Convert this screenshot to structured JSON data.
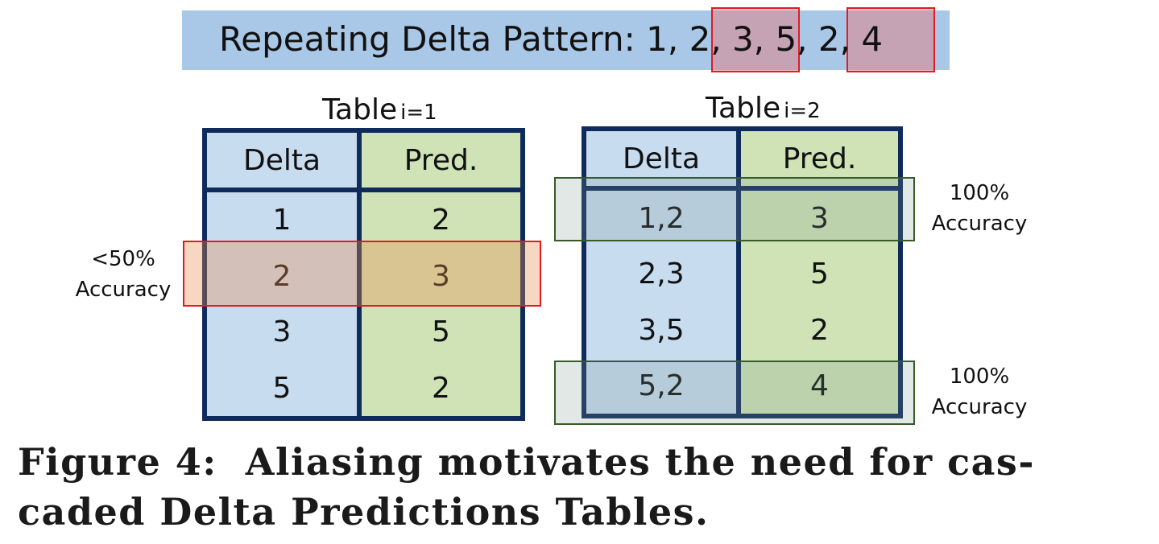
{
  "banner": {
    "prefix": "Repeating Delta Pattern: 1,",
    "hl1": "2, 3,",
    "middle": "5,",
    "hl2": "2, 4"
  },
  "table1": {
    "title": "Table",
    "subscript": "i=1",
    "headers": [
      "Delta",
      "Pred."
    ],
    "rows": [
      [
        "1",
        "2"
      ],
      [
        "2",
        "3"
      ],
      [
        "3",
        "5"
      ],
      [
        "5",
        "2"
      ]
    ],
    "note_line1": "<50%",
    "note_line2": "Accuracy"
  },
  "table2": {
    "title": "Table",
    "subscript": "i=2",
    "headers": [
      "Delta",
      "Pred."
    ],
    "rows": [
      [
        "1,2",
        "3"
      ],
      [
        "2,3",
        "5"
      ],
      [
        "3,5",
        "2"
      ],
      [
        "5,2",
        "4"
      ]
    ],
    "note_top_line1": "100%",
    "note_top_line2": "Accuracy",
    "note_bottom_line1": "100%",
    "note_bottom_line2": "Accuracy"
  },
  "caption": {
    "line1": "Figure 4:  Aliasing motivates the need for cas-",
    "line2": "caded Delta Predictions Tables."
  },
  "colors": {
    "banner": "#a9c7e6",
    "table_border": "#0f2b5c",
    "delta_col": "#c8dcf0",
    "pred_col": "#cfe3b6",
    "red_highlight": "#e01b22",
    "green_highlight": "#375a2a"
  }
}
